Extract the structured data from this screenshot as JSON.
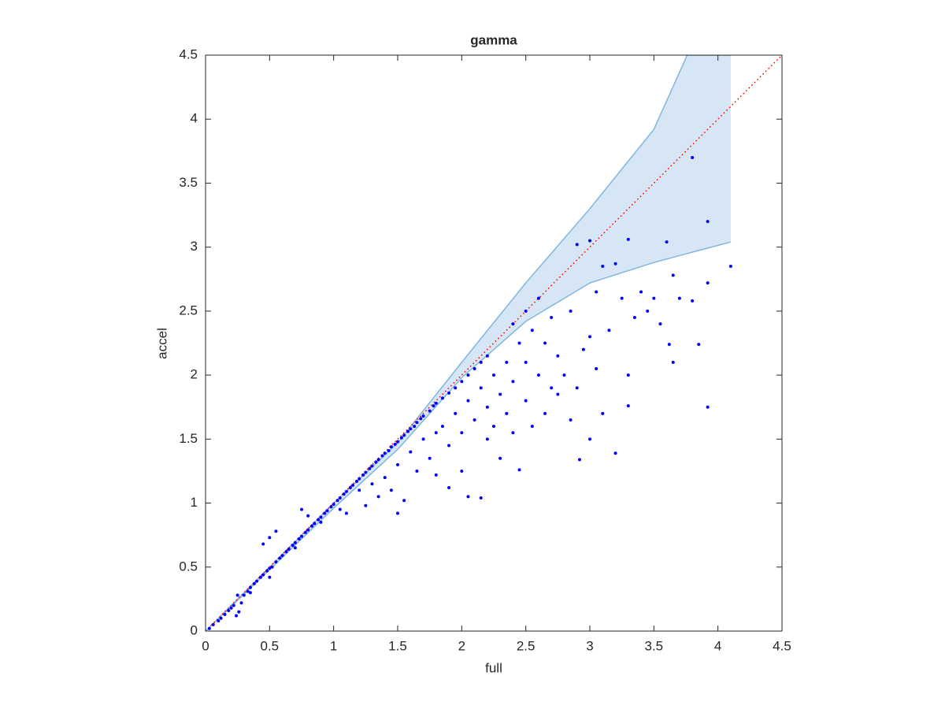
{
  "chart_data": {
    "type": "scatter",
    "title": "gamma",
    "x_label": "full",
    "y_label": "accel",
    "xlim": [
      0,
      4.5
    ],
    "ylim": [
      0,
      4.5
    ],
    "xticks": [
      0,
      0.5,
      1,
      1.5,
      2,
      2.5,
      3,
      3.5,
      4,
      4.5
    ],
    "yticks": [
      0,
      0.5,
      1,
      1.5,
      2,
      2.5,
      3,
      3.5,
      4,
      4.5
    ],
    "grid": false,
    "band": {
      "color": "#d6e6f4",
      "edge_color": "#7fb6e0",
      "x": [
        0,
        0.5,
        1,
        1.5,
        2,
        2.5,
        3,
        3.5,
        3.76,
        4.1
      ],
      "upper": [
        0,
        0.5,
        1.0,
        1.47,
        2.1,
        2.72,
        3.3,
        3.92,
        4.5,
        4.5
      ],
      "lower": [
        0,
        0.48,
        0.96,
        1.42,
        1.98,
        2.42,
        2.72,
        2.88,
        2.95,
        3.04
      ]
    },
    "reference_line": {
      "color": "#ff0000",
      "x": [
        0,
        4.5
      ],
      "y": [
        0,
        4.5
      ]
    },
    "points": {
      "color": "#0000ff",
      "x": [
        0.03,
        0.06,
        0.1,
        0.12,
        0.15,
        0.18,
        0.2,
        0.22,
        0.24,
        0.26,
        0.28,
        0.25,
        0.3,
        0.33,
        0.35,
        0.38,
        0.4,
        0.43,
        0.45,
        0.48,
        0.5,
        0.52,
        0.55,
        0.58,
        0.6,
        0.63,
        0.65,
        0.68,
        0.7,
        0.73,
        0.75,
        0.78,
        0.8,
        0.83,
        0.85,
        0.88,
        0.9,
        0.93,
        0.95,
        0.98,
        1.0,
        1.03,
        1.05,
        1.08,
        1.1,
        1.13,
        1.15,
        1.18,
        1.2,
        1.23,
        1.25,
        1.28,
        1.3,
        1.33,
        1.35,
        1.38,
        1.4,
        1.43,
        1.45,
        1.48,
        1.5,
        1.53,
        1.55,
        1.58,
        1.6,
        1.63,
        1.65,
        1.68,
        1.7,
        1.75,
        1.78,
        1.8,
        1.85,
        1.9,
        1.95,
        2.0,
        2.05,
        2.1,
        2.15,
        2.2,
        0.5,
        0.45,
        0.75,
        0.8,
        0.55,
        0.35,
        0.5,
        0.7,
        0.9,
        1.05,
        1.1,
        1.2,
        1.25,
        1.3,
        1.35,
        1.4,
        1.45,
        1.5,
        1.5,
        1.55,
        1.6,
        1.65,
        1.7,
        1.75,
        1.8,
        1.8,
        1.85,
        1.9,
        1.9,
        1.95,
        2.0,
        2.0,
        2.05,
        2.05,
        2.1,
        2.15,
        2.15,
        2.2,
        2.2,
        2.25,
        2.25,
        2.3,
        2.3,
        2.35,
        2.35,
        2.4,
        2.4,
        2.45,
        2.45,
        2.5,
        2.5,
        2.55,
        2.55,
        2.6,
        2.6,
        2.65,
        2.65,
        2.7,
        2.7,
        2.75,
        2.75,
        2.8,
        2.85,
        2.85,
        2.9,
        2.9,
        2.92,
        2.95,
        3.0,
        3.0,
        3.05,
        3.05,
        3.1,
        3.1,
        3.15,
        3.2,
        3.2,
        3.25,
        3.3,
        3.3,
        3.35,
        3.4,
        3.45,
        3.5,
        3.55,
        3.6,
        3.62,
        3.65,
        3.65,
        3.7,
        3.8,
        3.8,
        3.85,
        3.92,
        3.92,
        3.92,
        4.1,
        2.4,
        2.5,
        3.3,
        3.0
      ],
      "y": [
        0.02,
        0.05,
        0.08,
        0.1,
        0.13,
        0.16,
        0.18,
        0.2,
        0.12,
        0.15,
        0.22,
        0.28,
        0.28,
        0.31,
        0.34,
        0.37,
        0.39,
        0.42,
        0.44,
        0.47,
        0.49,
        0.5,
        0.54,
        0.57,
        0.59,
        0.62,
        0.64,
        0.67,
        0.69,
        0.72,
        0.74,
        0.77,
        0.79,
        0.82,
        0.84,
        0.87,
        0.89,
        0.92,
        0.94,
        0.97,
        0.99,
        1.02,
        1.04,
        1.07,
        1.09,
        1.12,
        1.14,
        1.17,
        1.19,
        1.22,
        1.24,
        1.27,
        1.29,
        1.32,
        1.34,
        1.37,
        1.39,
        1.41,
        1.44,
        1.46,
        1.48,
        1.51,
        1.53,
        1.56,
        1.58,
        1.6,
        1.63,
        1.66,
        1.68,
        1.72,
        1.76,
        1.78,
        1.82,
        1.86,
        1.9,
        1.95,
        2.0,
        2.05,
        2.1,
        2.15,
        0.73,
        0.68,
        0.95,
        0.9,
        0.78,
        0.3,
        0.42,
        0.65,
        0.85,
        0.95,
        0.92,
        1.1,
        0.98,
        1.15,
        1.05,
        1.2,
        1.1,
        1.3,
        0.92,
        1.02,
        1.4,
        1.25,
        1.5,
        1.35,
        1.55,
        1.22,
        1.6,
        1.45,
        1.12,
        1.7,
        1.55,
        1.25,
        1.8,
        1.05,
        1.65,
        1.04,
        1.9,
        1.5,
        1.75,
        2.0,
        1.6,
        1.85,
        1.35,
        2.1,
        1.7,
        1.95,
        1.55,
        2.25,
        1.26,
        1.8,
        2.1,
        2.35,
        1.6,
        2.0,
        2.6,
        2.25,
        1.7,
        1.9,
        2.45,
        2.15,
        1.85,
        2.0,
        2.5,
        1.65,
        3.02,
        1.9,
        1.34,
        2.2,
        3.05,
        2.3,
        2.65,
        2.05,
        2.85,
        1.7,
        2.35,
        2.87,
        1.39,
        2.6,
        3.06,
        2.0,
        2.45,
        2.65,
        2.5,
        2.6,
        2.4,
        3.04,
        2.24,
        2.78,
        2.1,
        2.6,
        3.7,
        2.58,
        2.24,
        3.2,
        2.72,
        1.75,
        2.85,
        2.4,
        2.5,
        1.76,
        1.5
      ]
    }
  }
}
